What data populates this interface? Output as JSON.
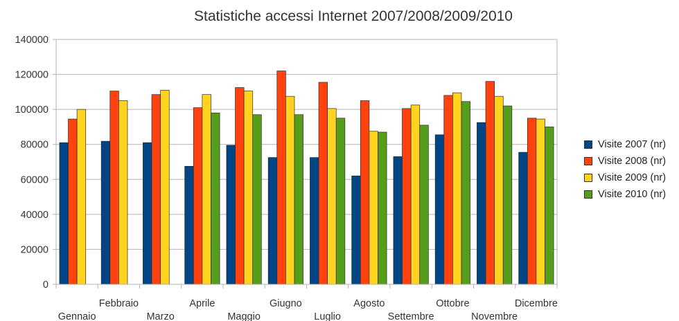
{
  "chart_data": {
    "type": "bar",
    "title": "Statistiche accessi Internet 2007/2008/2009/2010",
    "xlabel": "",
    "ylabel": "",
    "ylim": [
      0,
      140000
    ],
    "yticks": [
      0,
      20000,
      40000,
      60000,
      80000,
      100000,
      120000,
      140000
    ],
    "grid": true,
    "legend_position": "right",
    "categories": [
      "Gennaio",
      "Febbraio",
      "Marzo",
      "Aprile",
      "Maggio",
      "Giugno",
      "Luglio",
      "Agosto",
      "Settembre",
      "Ottobre",
      "Novembre",
      "Dicembre"
    ],
    "series": [
      {
        "name": "Visite 2007 (nr)",
        "color": "#004586",
        "values": [
          81000,
          81800,
          81000,
          67500,
          79500,
          72500,
          72500,
          62000,
          73000,
          85500,
          92500,
          75500
        ]
      },
      {
        "name": "Visite 2008 (nr)",
        "color": "#ff420e",
        "values": [
          94500,
          110500,
          108500,
          101000,
          112500,
          122000,
          115500,
          105000,
          100500,
          108000,
          116000,
          95000
        ]
      },
      {
        "name": "Visite 2009 (nr)",
        "color": "#ffd320",
        "values": [
          100000,
          105000,
          111000,
          108500,
          110500,
          107500,
          100500,
          87500,
          102500,
          109500,
          107500,
          94500
        ]
      },
      {
        "name": "Visite 2010 (nr)",
        "color": "#579d1c",
        "values": [
          null,
          null,
          null,
          98000,
          97000,
          97000,
          95000,
          87000,
          91000,
          104500,
          102000,
          90000
        ]
      }
    ]
  }
}
